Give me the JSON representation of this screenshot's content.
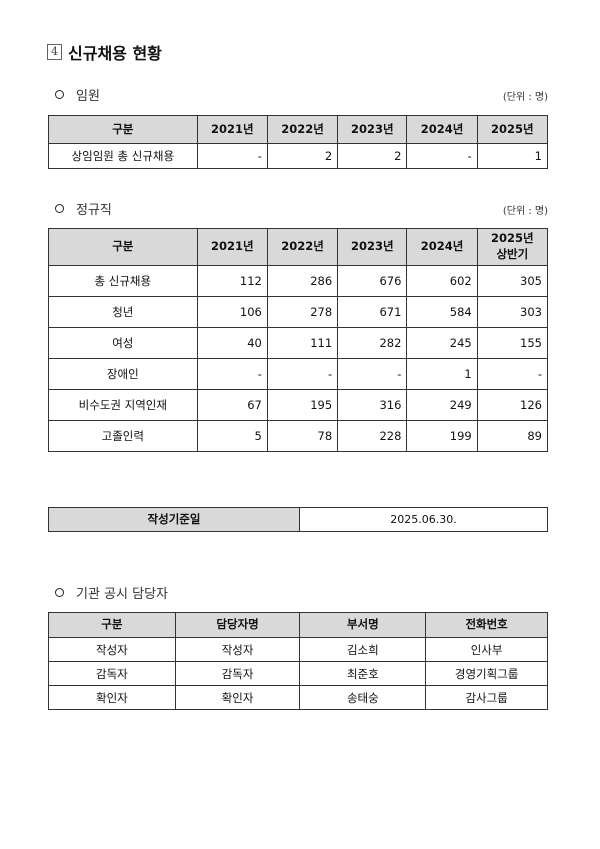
{
  "title": {
    "number": "4",
    "text": "신규채용 현황"
  },
  "executives": {
    "section_label": "임원",
    "unit": "(단위 : 명)",
    "headers": [
      "구분",
      "2021년",
      "2022년",
      "2023년",
      "2024년",
      "2025년"
    ],
    "rows": [
      {
        "label": "상임임원 총 신규채용",
        "values": [
          "-",
          "2",
          "2",
          "-",
          "1"
        ]
      }
    ]
  },
  "regular": {
    "section_label": "정규직",
    "unit": "(단위 : 명)",
    "headers": [
      "구분",
      "2021년",
      "2022년",
      "2023년",
      "2024년",
      "2025년\n상반기"
    ],
    "rows": [
      {
        "label": "총 신규채용",
        "values": [
          "112",
          "286",
          "676",
          "602",
          "305"
        ]
      },
      {
        "label": "청년",
        "values": [
          "106",
          "278",
          "671",
          "584",
          "303"
        ]
      },
      {
        "label": "여성",
        "values": [
          "40",
          "111",
          "282",
          "245",
          "155"
        ]
      },
      {
        "label": "장애인",
        "values": [
          "-",
          "-",
          "-",
          "1",
          "-"
        ]
      },
      {
        "label": "비수도권 지역인재",
        "values": [
          "67",
          "195",
          "316",
          "249",
          "126"
        ]
      },
      {
        "label": "고졸인력",
        "values": [
          "5",
          "78",
          "228",
          "199",
          "89"
        ]
      }
    ]
  },
  "base_date": {
    "label": "작성기준일",
    "value": "2025.06.30."
  },
  "contacts": {
    "section_label": "기관 공시 담당자",
    "headers": [
      "구분",
      "담당자명",
      "부서명",
      "전화번호"
    ],
    "rows": [
      [
        "작성자",
        "작성자",
        "김소희",
        "인사부"
      ],
      [
        "감독자",
        "감독자",
        "최준호",
        "경영기획그룹"
      ],
      [
        "확인자",
        "확인자",
        "송태숭",
        "감사그룹"
      ]
    ]
  }
}
